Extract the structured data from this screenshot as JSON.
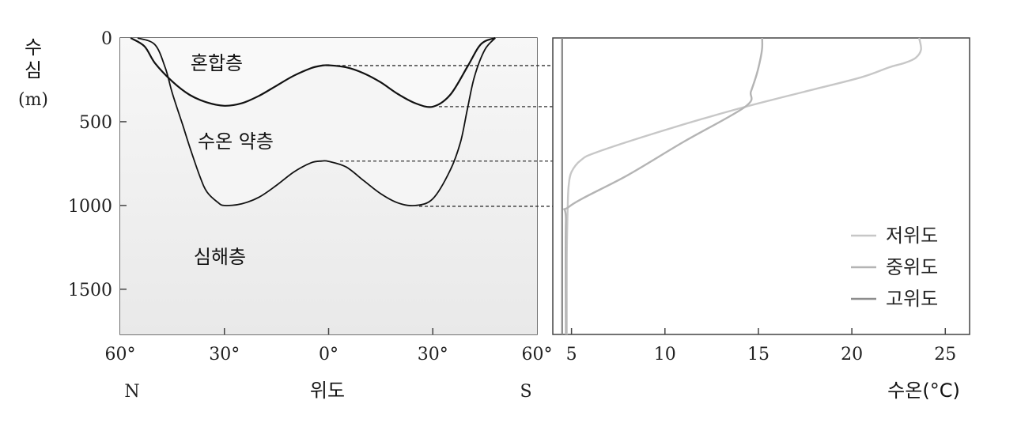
{
  "chart_data": [
    {
      "type": "area",
      "xlabel": "위도",
      "ylabel": "수심 (m)",
      "x_ticks": [
        "60°",
        "30°",
        "0°",
        "30°",
        "60°"
      ],
      "x_end_labels": {
        "left": "N",
        "right": "S"
      },
      "y_ticks": [
        0,
        500,
        1000,
        1500
      ],
      "ylim": [
        0,
        1770
      ],
      "xlim": [
        60,
        -60
      ],
      "layers": [
        "혼합층",
        "수온 약층",
        "심해층"
      ],
      "boundaries": [
        {
          "name": "mixed-layer-bottom",
          "lat": [
            57,
            53,
            50,
            45,
            40,
            35,
            30,
            25,
            20,
            15,
            10,
            5,
            2,
            0,
            -5,
            -10,
            -15,
            -20,
            -25,
            -30,
            -35,
            -40,
            -43,
            -45,
            -48
          ],
          "depth": [
            0,
            50,
            150,
            260,
            340,
            385,
            405,
            390,
            345,
            285,
            225,
            180,
            165,
            163,
            175,
            210,
            265,
            335,
            390,
            410,
            340,
            170,
            60,
            20,
            0
          ]
        },
        {
          "name": "thermocline-bottom",
          "lat": [
            55,
            50,
            47,
            45,
            42,
            40,
            37,
            35,
            32,
            30,
            25,
            20,
            15,
            10,
            5,
            2,
            0,
            -5,
            -10,
            -15,
            -20,
            -25,
            -30,
            -35,
            -38,
            -40,
            -42,
            -45,
            -48
          ],
          "depth": [
            0,
            40,
            180,
            330,
            520,
            650,
            830,
            920,
            980,
            1000,
            990,
            950,
            880,
            800,
            745,
            735,
            737,
            770,
            850,
            930,
            985,
            1000,
            960,
            790,
            620,
            420,
            230,
            70,
            0
          ]
        }
      ],
      "dashed_depths": [
        165,
        410,
        735,
        1005
      ]
    },
    {
      "type": "line",
      "xlabel": "수온(°C)",
      "x_ticks": [
        5,
        10,
        15,
        20,
        25
      ],
      "xlim": [
        4,
        26.3
      ],
      "ylim": [
        0,
        1770
      ],
      "legend_position": "bottom-right",
      "series": [
        {
          "name": "저위도",
          "color": "#c7c7c7",
          "temp": [
            23.6,
            23.7,
            23.4,
            22.8,
            22,
            20.5,
            17.5,
            14,
            10,
            6.4,
            5.5,
            5,
            4.85,
            4.8,
            4.75,
            4.75
          ],
          "depth": [
            0,
            70,
            120,
            150,
            175,
            235,
            320,
            420,
            550,
            680,
            730,
            800,
            880,
            1000,
            1300,
            1770
          ]
        },
        {
          "name": "중위도",
          "color": "#b4b4b4",
          "temp": [
            15.2,
            15.2,
            15.1,
            14.9,
            14.6,
            14.3,
            11,
            8,
            4.9,
            4.7,
            4.7
          ],
          "depth": [
            0,
            60,
            130,
            220,
            320,
            410,
            620,
            820,
            1005,
            1100,
            1770
          ]
        },
        {
          "name": "고위도",
          "color": "#8d8d8d",
          "temp": [
            4.5,
            4.5
          ],
          "depth": [
            0,
            1770
          ]
        }
      ]
    }
  ]
}
